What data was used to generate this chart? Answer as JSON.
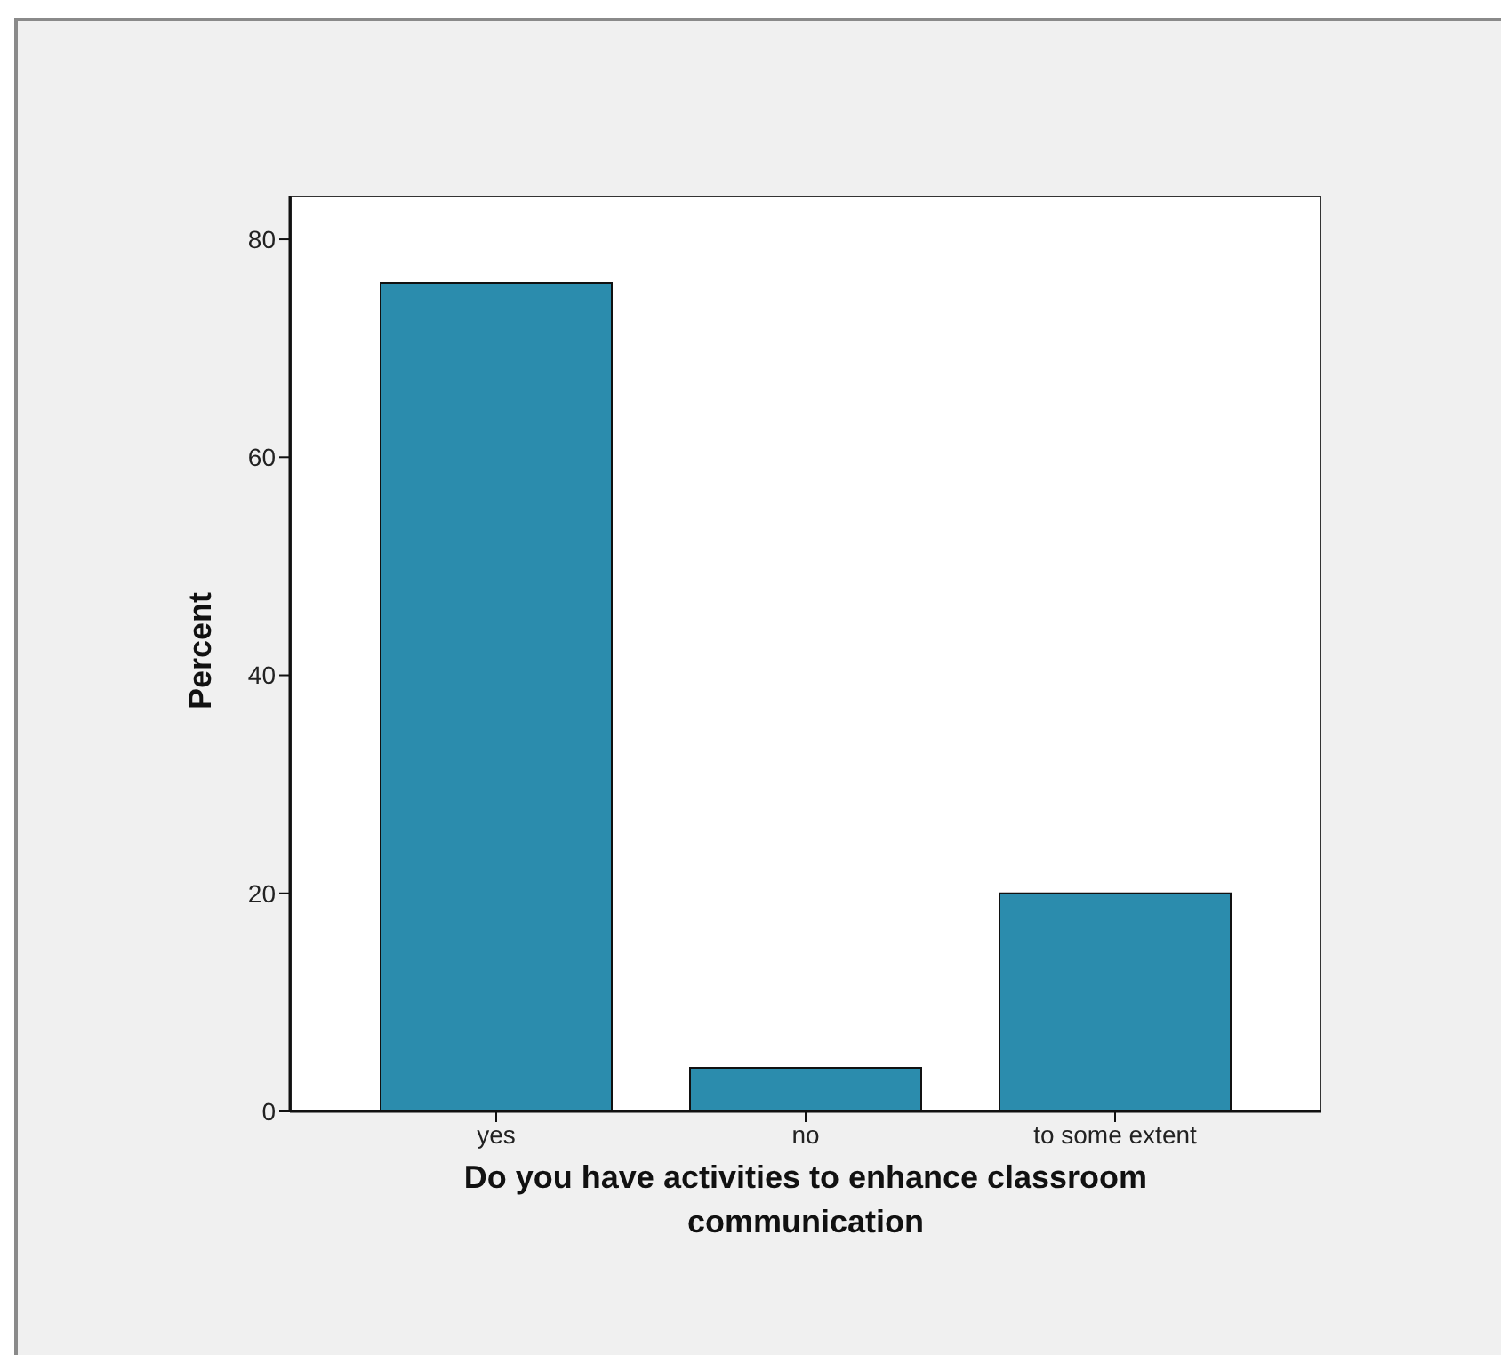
{
  "chart_data": {
    "type": "bar",
    "categories": [
      "yes",
      "no",
      "to some extent"
    ],
    "values": [
      76,
      4,
      20
    ],
    "color": "#2b8cad",
    "xlabel": "Do you have activities to enhance classroom communication",
    "ylabel": "Percent",
    "ylim": [
      0,
      84
    ],
    "yticks": [
      0,
      20,
      40,
      60,
      80
    ]
  }
}
